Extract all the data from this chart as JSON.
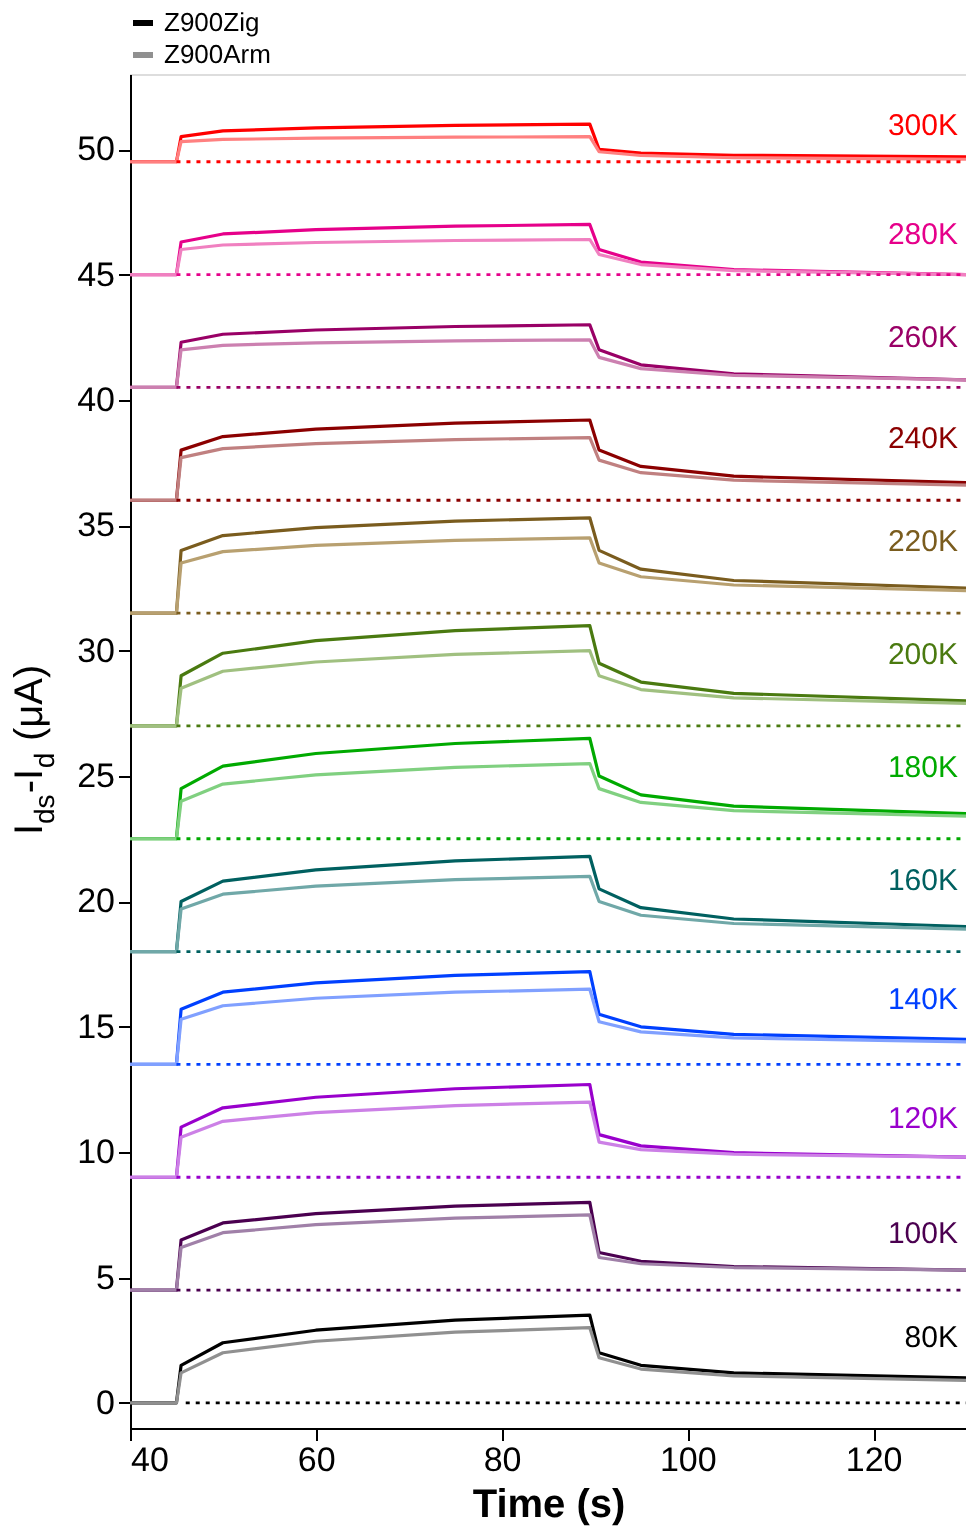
{
  "chart_data": {
    "type": "line",
    "xlabel": "Time (s)",
    "ylabel": "I$_{ds}$-I$_{d}$ (μA)",
    "xlim": [
      40,
      130
    ],
    "ylim": [
      -1,
      53
    ],
    "xticks": [
      40,
      60,
      80,
      100,
      120
    ],
    "yticks": [
      0,
      5,
      10,
      15,
      20,
      25,
      30,
      35,
      40,
      45,
      50
    ],
    "grid": false,
    "legend": "top",
    "line_style": "solid",
    "marker": "none",
    "x": [
      40,
      45,
      45.5,
      50,
      60,
      75,
      89.5,
      90.5,
      95,
      105,
      130
    ],
    "series": [
      {
        "name": "Z900Zig",
        "color": "#000000",
        "values": [
          0,
          0,
          1.5,
          2.4,
          2.9,
          3.3,
          3.5,
          2.0,
          1.5,
          1.2,
          1.0
        ]
      },
      {
        "name": "Z900Arm",
        "color": "#909090",
        "values": [
          0,
          0,
          1.2,
          2.0,
          2.46,
          2.82,
          3.0,
          1.8,
          1.35,
          1.08,
          0.9
        ]
      },
      {
        "color": "#000000",
        "line_style": "dotted",
        "x": [
          46,
          130
        ],
        "values": [
          0,
          0
        ]
      },
      {
        "color": "#4b0050",
        "values": [
          4.5,
          4.5,
          6.5,
          7.18,
          7.55,
          7.85,
          8.0,
          6.0,
          5.65,
          5.44,
          5.3
        ]
      },
      {
        "color": "#a080a8",
        "values": [
          4.5,
          4.5,
          6.2,
          6.79,
          7.11,
          7.37,
          7.5,
          5.8,
          5.55,
          5.4,
          5.3
        ]
      },
      {
        "color": "#4b0050",
        "line_style": "dotted",
        "x": [
          45,
          130
        ],
        "values": [
          4.5,
          4.5
        ]
      },
      {
        "color": "#9900cc",
        "values": [
          9,
          9,
          11,
          11.77,
          12.19,
          12.53,
          12.7,
          10.7,
          10.25,
          9.98,
          9.8
        ]
      },
      {
        "color": "#cc80e6",
        "values": [
          9,
          9,
          10.6,
          11.23,
          11.58,
          11.86,
          12.0,
          10.4,
          10.1,
          9.92,
          9.8
        ]
      },
      {
        "color": "#9900cc",
        "line_style": "dotted",
        "x": [
          45,
          130
        ],
        "values": [
          9,
          9
        ]
      },
      {
        "color": "#0040ff",
        "values": [
          13.5,
          13.5,
          15.7,
          16.38,
          16.75,
          17.05,
          17.2,
          15.5,
          15.0,
          14.7,
          14.5
        ]
      },
      {
        "color": "#80a0ff",
        "values": [
          13.5,
          13.5,
          15.3,
          15.84,
          16.14,
          16.38,
          16.5,
          15.2,
          14.8,
          14.56,
          14.4
        ]
      },
      {
        "color": "#0040ff",
        "line_style": "dotted",
        "x": [
          45,
          130
        ],
        "values": [
          13.5,
          13.5
        ]
      },
      {
        "color": "#006060",
        "values": [
          18,
          18,
          20,
          20.81,
          21.26,
          21.62,
          21.8,
          20.5,
          19.75,
          19.3,
          19.0
        ]
      },
      {
        "color": "#70a8a8",
        "values": [
          18,
          18,
          19.7,
          20.29,
          20.61,
          20.87,
          21.0,
          20.0,
          19.45,
          19.12,
          18.9
        ]
      },
      {
        "color": "#006060",
        "line_style": "dotted",
        "x": [
          45,
          130
        ],
        "values": [
          18,
          18
        ]
      },
      {
        "color": "#00aa00",
        "values": [
          22.5,
          22.5,
          24.5,
          25.4,
          25.9,
          26.3,
          26.5,
          25.0,
          24.25,
          23.8,
          23.5
        ]
      },
      {
        "color": "#80d080",
        "values": [
          22.5,
          22.5,
          24.0,
          24.68,
          25.05,
          25.35,
          25.5,
          24.5,
          23.95,
          23.62,
          23.4
        ]
      },
      {
        "color": "#00aa00",
        "line_style": "dotted",
        "x": [
          45,
          130
        ],
        "values": [
          22.5,
          22.5
        ]
      },
      {
        "color": "#4a7a10",
        "values": [
          27,
          27,
          29,
          29.9,
          30.4,
          30.8,
          31.0,
          29.5,
          28.75,
          28.3,
          28.0
        ]
      },
      {
        "color": "#a0c080",
        "values": [
          27,
          27,
          28.5,
          29.18,
          29.55,
          29.85,
          30.0,
          29.0,
          28.45,
          28.12,
          27.9
        ]
      },
      {
        "color": "#4a7a10",
        "line_style": "dotted",
        "x": [
          45,
          130
        ],
        "values": [
          27,
          27
        ]
      },
      {
        "color": "#7a5c1e",
        "values": [
          31.5,
          31.5,
          34.0,
          34.59,
          34.91,
          35.17,
          35.3,
          34.0,
          33.25,
          32.8,
          32.5
        ]
      },
      {
        "color": "#b8a070",
        "values": [
          31.5,
          31.5,
          33.5,
          33.95,
          34.2,
          34.4,
          34.5,
          33.5,
          32.95,
          32.62,
          32.4
        ]
      },
      {
        "color": "#7a5c1e",
        "line_style": "dotted",
        "x": [
          45,
          130
        ],
        "values": [
          31.5,
          31.5
        ]
      },
      {
        "color": "#8b0000",
        "values": [
          36,
          36,
          38,
          38.54,
          38.84,
          39.08,
          39.2,
          38.0,
          37.35,
          36.96,
          36.7
        ]
      },
      {
        "color": "#c08080",
        "values": [
          36,
          36,
          37.7,
          38.06,
          38.26,
          38.42,
          38.5,
          37.6,
          37.1,
          36.8,
          36.6
        ]
      },
      {
        "color": "#8b0000",
        "line_style": "dotted",
        "x": [
          45,
          130
        ],
        "values": [
          36,
          36
        ]
      },
      {
        "color": "#990066",
        "values": [
          40.5,
          40.5,
          42.3,
          42.62,
          42.79,
          42.93,
          43.0,
          42.0,
          41.4,
          41.04,
          40.8
        ]
      },
      {
        "color": "#cc80b0",
        "values": [
          40.5,
          40.5,
          42.0,
          42.18,
          42.28,
          42.36,
          42.4,
          41.7,
          41.25,
          40.98,
          40.8
        ]
      },
      {
        "color": "#990066",
        "line_style": "dotted",
        "x": [
          45,
          130
        ],
        "values": [
          40.5,
          40.5
        ]
      },
      {
        "color": "#e6008a",
        "values": [
          45,
          45,
          46.3,
          46.62,
          46.79,
          46.93,
          47.0,
          46.0,
          45.5,
          45.2,
          45.0
        ]
      },
      {
        "color": "#f080c0",
        "values": [
          45,
          45,
          46.0,
          46.18,
          46.28,
          46.36,
          46.4,
          45.8,
          45.4,
          45.16,
          45.0
        ]
      },
      {
        "color": "#e6008a",
        "line_style": "dotted",
        "x": [
          45,
          130
        ],
        "values": [
          45,
          45
        ]
      },
      {
        "color": "#ff0000",
        "values": [
          49.5,
          49.5,
          50.5,
          50.73,
          50.85,
          50.95,
          51.0,
          50.0,
          49.85,
          49.76,
          49.7
        ]
      },
      {
        "color": "#ff8080",
        "values": [
          49.5,
          49.5,
          50.3,
          50.39,
          50.44,
          50.48,
          50.5,
          49.9,
          49.75,
          49.66,
          49.6
        ]
      },
      {
        "color": "#ff0000",
        "line_style": "dotted",
        "x": [
          45,
          130
        ],
        "values": [
          49.5,
          49.5
        ]
      }
    ],
    "annotations": [
      "80K",
      "100K",
      "120K",
      "140K",
      "160K",
      "180K",
      "200K",
      "220K",
      "240K",
      "260K",
      "280K",
      "300K"
    ]
  }
}
